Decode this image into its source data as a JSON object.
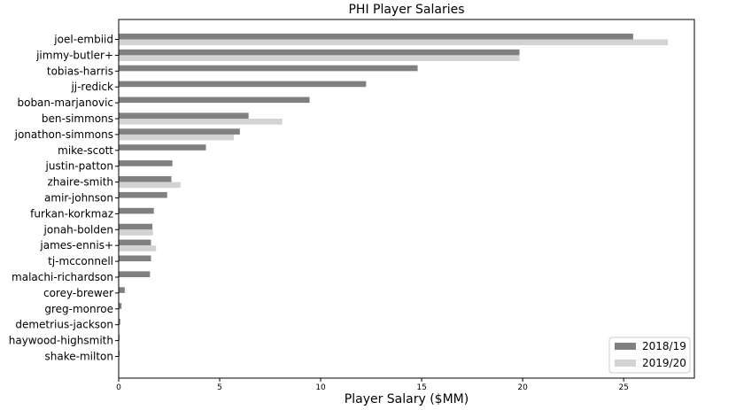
{
  "chart_data": {
    "type": "bar",
    "orientation": "horizontal",
    "title": "PHI Player Salaries",
    "xlabel": "Player Salary ($MM)",
    "ylabel": "",
    "xlim": [
      0,
      28.5
    ],
    "xticks": [
      0,
      5,
      10,
      15,
      20,
      25
    ],
    "grid": false,
    "legend_position": "bottom-right",
    "categories": [
      "joel-embiid",
      "jimmy-butler+",
      "tobias-harris",
      "jj-redick",
      "boban-marjanovic",
      "ben-simmons",
      "jonathon-simmons",
      "mike-scott",
      "justin-patton",
      "zhaire-smith",
      "amir-johnson",
      "furkan-korkmaz",
      "jonah-bolden",
      "james-ennis+",
      "tj-mcconnell",
      "malachi-richardson",
      "corey-brewer",
      "greg-monroe",
      "demetrius-jackson",
      "haywood-highsmith",
      "shake-milton"
    ],
    "series": [
      {
        "name": "2018/19",
        "color": "#808080",
        "values": [
          25.47,
          19.84,
          14.8,
          12.25,
          9.45,
          6.43,
          6.0,
          4.32,
          2.66,
          2.61,
          2.4,
          1.74,
          1.67,
          1.6,
          1.6,
          1.55,
          0.3,
          0.14,
          0.08,
          0.05,
          0.05
        ]
      },
      {
        "name": "2019/20",
        "color": "#d3d3d3",
        "values": [
          27.2,
          19.84,
          0,
          0,
          0,
          8.1,
          5.7,
          0,
          0,
          3.06,
          0,
          0,
          1.7,
          1.85,
          0,
          0,
          0,
          0,
          0,
          0,
          0
        ]
      }
    ]
  }
}
